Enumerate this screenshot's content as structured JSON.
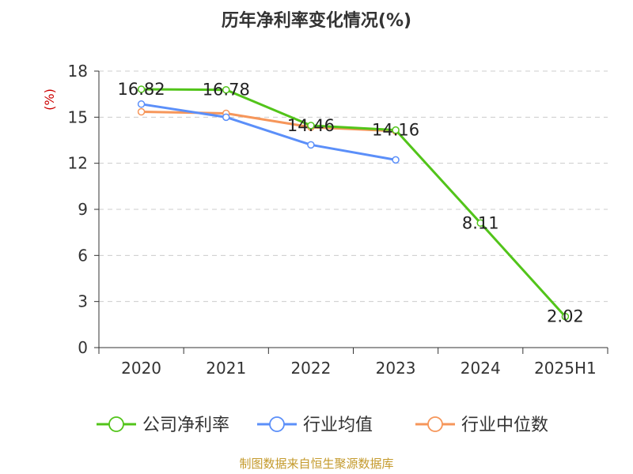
{
  "chart_data": {
    "type": "line",
    "title": "历年净利率变化情况(%)",
    "ylabel": "(%)",
    "categories": [
      "2020",
      "2021",
      "2022",
      "2023",
      "2024",
      "2025H1"
    ],
    "ylim": [
      0,
      18
    ],
    "yticks": [
      0,
      3,
      6,
      9,
      12,
      15,
      18
    ],
    "grid": true,
    "legend_position": "bottom",
    "series": [
      {
        "name": "公司净利率",
        "color": "#52c41a",
        "values": [
          16.82,
          16.78,
          14.46,
          14.16,
          8.11,
          2.02
        ],
        "labels": [
          "16.82",
          "16.78",
          "14.46",
          "14.16",
          "8.11",
          "2.02"
        ]
      },
      {
        "name": "行业均值",
        "color": "#5b8ff9",
        "values": [
          15.85,
          15.0,
          13.2,
          12.22,
          null,
          null
        ]
      },
      {
        "name": "行业中位数",
        "color": "#f6965a",
        "values": [
          15.35,
          15.25,
          14.35,
          14.1,
          null,
          null
        ]
      }
    ]
  },
  "source": "制图数据来自恒生聚源数据库"
}
